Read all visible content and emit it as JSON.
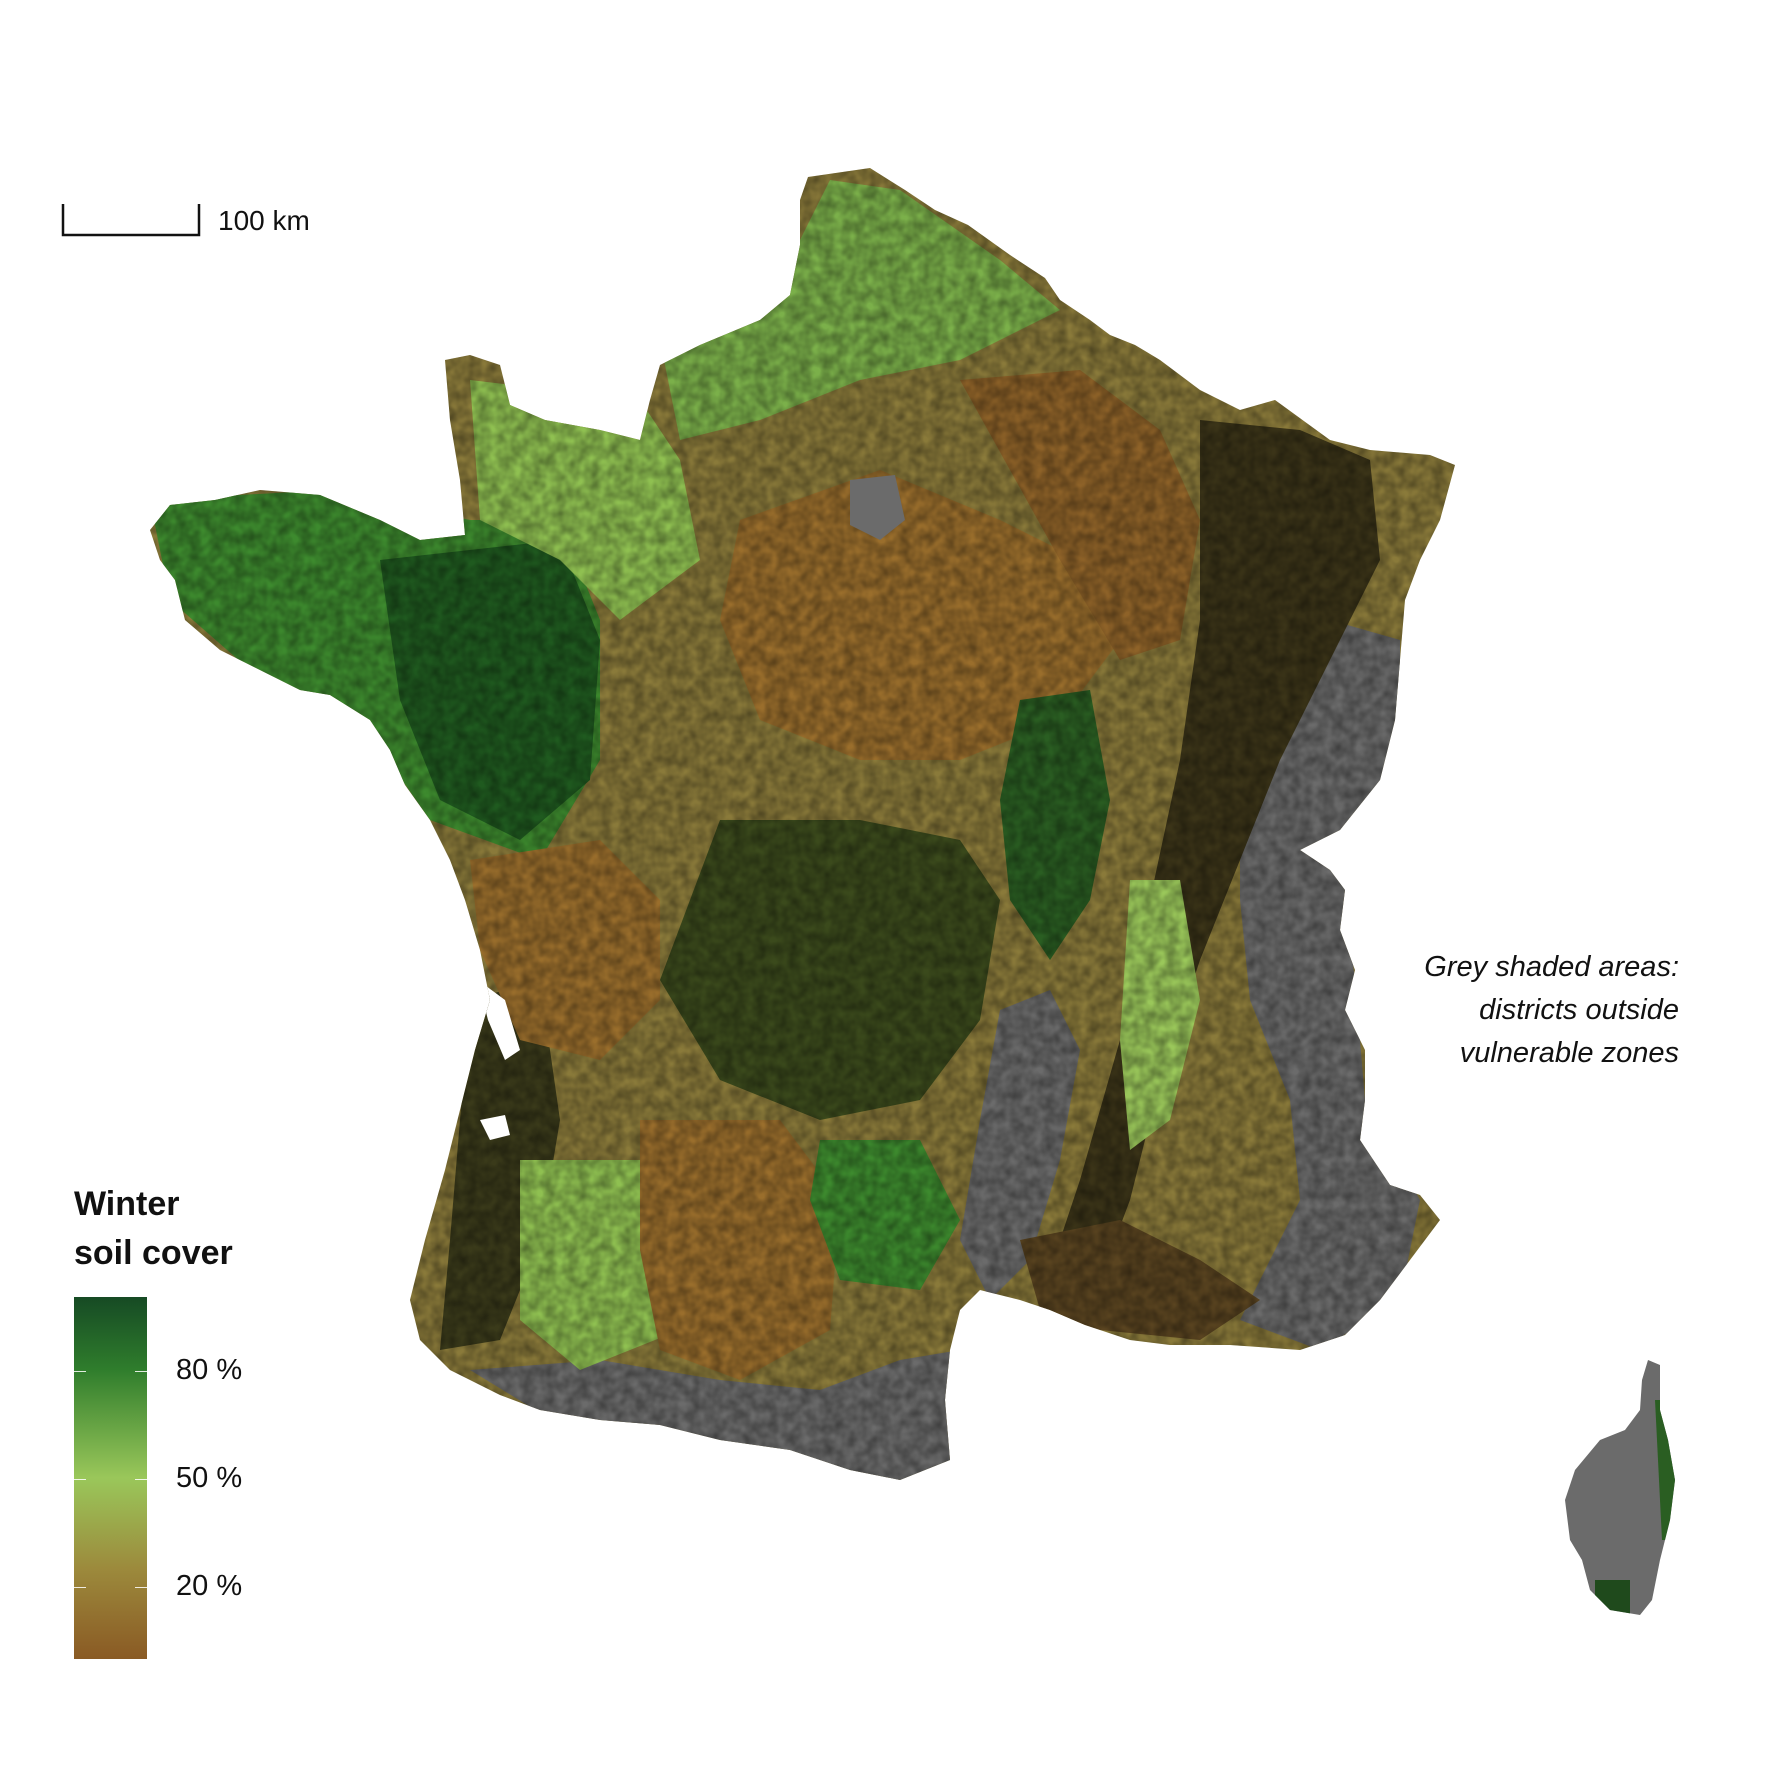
{
  "map": {
    "scale_bar": {
      "label": "100 km"
    },
    "legend": {
      "title_line1": "Winter",
      "title_line2": "soil cover",
      "ticks": [
        {
          "label": "80 %",
          "value": 80
        },
        {
          "label": "50 %",
          "value": 50
        },
        {
          "label": "20 %",
          "value": 20
        }
      ],
      "colors": [
        "#164a24",
        "#2f7d2c",
        "#9ac75a",
        "#9c8a3c",
        "#8a5a24"
      ]
    },
    "note": {
      "line1": "Grey shaded areas:",
      "line2": "districts outside",
      "line3": "vulnerable zones"
    },
    "colors": {
      "grey_zone": "#6b6b6b",
      "dark_green": "#1f4a1c",
      "mid_green": "#3d8a2e",
      "light_green": "#8fc051",
      "olive": "#8a7a3a",
      "brown": "#8e6228",
      "dark_brown": "#3b3418"
    }
  }
}
